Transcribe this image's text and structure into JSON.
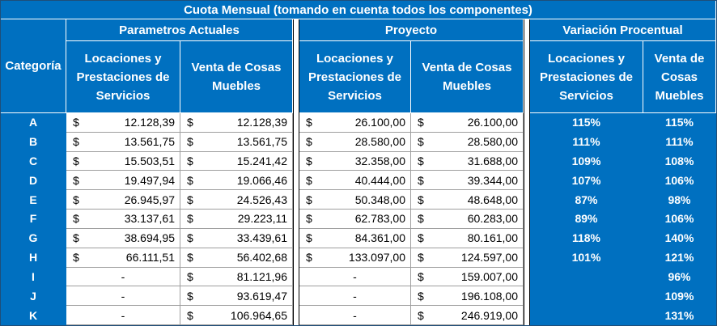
{
  "title": "Cuota Mensual (tomando en cuenta todos los componentes)",
  "category_header": "Categoría",
  "groups": [
    {
      "label": "Parametros Actuales",
      "col_a": "Locaciones y Prestaciones de Servicios",
      "col_b": "Venta de Cosas Muebles"
    },
    {
      "label": "Proyecto",
      "col_a": "Locaciones y Prestaciones de Servicios",
      "col_b": "Venta de Cosas Muebles"
    },
    {
      "label": "Variación Procentual",
      "col_a": "Locaciones y Prestaciones de Servicios",
      "col_b": "Venta de Cosas Muebles"
    }
  ],
  "currency_symbol": "$",
  "rows": [
    {
      "cat": "A",
      "act_loc": "12.128,39",
      "act_ven": "12.128,39",
      "pro_loc": "26.100,00",
      "pro_ven": "26.100,00",
      "var_loc": "115%",
      "var_ven": "115%"
    },
    {
      "cat": "B",
      "act_loc": "13.561,75",
      "act_ven": "13.561,75",
      "pro_loc": "28.580,00",
      "pro_ven": "28.580,00",
      "var_loc": "111%",
      "var_ven": "111%"
    },
    {
      "cat": "C",
      "act_loc": "15.503,51",
      "act_ven": "15.241,42",
      "pro_loc": "32.358,00",
      "pro_ven": "31.688,00",
      "var_loc": "109%",
      "var_ven": "108%"
    },
    {
      "cat": "D",
      "act_loc": "19.497,94",
      "act_ven": "19.066,46",
      "pro_loc": "40.444,00",
      "pro_ven": "39.344,00",
      "var_loc": "107%",
      "var_ven": "106%"
    },
    {
      "cat": "E",
      "act_loc": "26.945,97",
      "act_ven": "24.526,43",
      "pro_loc": "50.348,00",
      "pro_ven": "48.648,00",
      "var_loc": "87%",
      "var_ven": "98%"
    },
    {
      "cat": "F",
      "act_loc": "33.137,61",
      "act_ven": "29.223,11",
      "pro_loc": "62.783,00",
      "pro_ven": "60.283,00",
      "var_loc": "89%",
      "var_ven": "106%"
    },
    {
      "cat": "G",
      "act_loc": "38.694,95",
      "act_ven": "33.439,61",
      "pro_loc": "84.361,00",
      "pro_ven": "80.161,00",
      "var_loc": "118%",
      "var_ven": "140%"
    },
    {
      "cat": "H",
      "act_loc": "66.111,51",
      "act_ven": "56.402,68",
      "pro_loc": "133.097,00",
      "pro_ven": "124.597,00",
      "var_loc": "101%",
      "var_ven": "121%"
    },
    {
      "cat": "I",
      "act_loc": "-",
      "act_ven": "81.121,96",
      "pro_loc": "-",
      "pro_ven": "159.007,00",
      "var_loc": "",
      "var_ven": "96%"
    },
    {
      "cat": "J",
      "act_loc": "-",
      "act_ven": "93.619,47",
      "pro_loc": "-",
      "pro_ven": "196.108,00",
      "var_loc": "",
      "var_ven": "109%"
    },
    {
      "cat": "K",
      "act_loc": "-",
      "act_ven": "106.964,65",
      "pro_loc": "-",
      "pro_ven": "246.919,00",
      "var_loc": "",
      "var_ven": "131%"
    }
  ],
  "colors": {
    "header_blue": "#0070c0",
    "header_text": "#ffffff"
  }
}
